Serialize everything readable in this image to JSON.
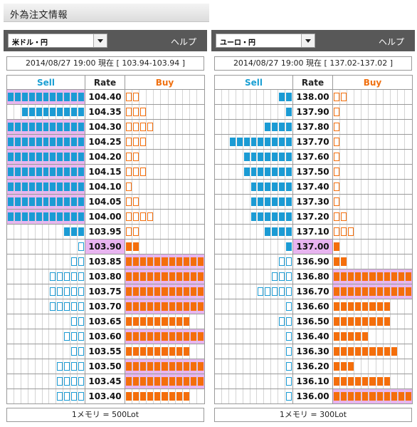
{
  "page": {
    "title": "外為注文情報"
  },
  "panels": [
    {
      "pair": "米ドル・円",
      "help": "ヘルプ",
      "timestamp": "2014/08/27  19:00 現在 [ 103.94-103.94 ]",
      "headers": {
        "sell": "Sell",
        "rate": "Rate",
        "buy": "Buy"
      },
      "footer": "1メモリ = 500Lot",
      "rows": [
        {
          "rate": "104.40",
          "sell": 11,
          "sell_type": "fill",
          "buy": 2,
          "buy_type": "empty",
          "hl": "sell"
        },
        {
          "rate": "104.35",
          "sell": 9,
          "sell_type": "fill",
          "buy": 3,
          "buy_type": "empty",
          "hl": ""
        },
        {
          "rate": "104.30",
          "sell": 11,
          "sell_type": "fill",
          "buy": 4,
          "buy_type": "empty",
          "hl": "sell"
        },
        {
          "rate": "104.25",
          "sell": 11,
          "sell_type": "fill",
          "buy": 3,
          "buy_type": "empty",
          "hl": "sell"
        },
        {
          "rate": "104.20",
          "sell": 11,
          "sell_type": "fill",
          "buy": 2,
          "buy_type": "empty",
          "hl": "sell"
        },
        {
          "rate": "104.15",
          "sell": 11,
          "sell_type": "fill",
          "buy": 3,
          "buy_type": "empty",
          "hl": "sell"
        },
        {
          "rate": "104.10",
          "sell": 11,
          "sell_type": "fill",
          "buy": 1,
          "buy_type": "empty",
          "hl": "sell"
        },
        {
          "rate": "104.05",
          "sell": 11,
          "sell_type": "fill",
          "buy": 2,
          "buy_type": "empty",
          "hl": "sell"
        },
        {
          "rate": "104.00",
          "sell": 11,
          "sell_type": "fill",
          "buy": 4,
          "buy_type": "empty",
          "hl": "sell"
        },
        {
          "rate": "103.95",
          "sell": 3,
          "sell_type": "fill",
          "buy": 2,
          "buy_type": "empty",
          "hl": ""
        },
        {
          "rate": "103.90",
          "sell": 1,
          "sell_type": "empty",
          "buy": 2,
          "buy_type": "fill",
          "hl": "",
          "current": true
        },
        {
          "rate": "103.85",
          "sell": 2,
          "sell_type": "empty",
          "buy": 11,
          "buy_type": "fill",
          "hl": "buy"
        },
        {
          "rate": "103.80",
          "sell": 5,
          "sell_type": "empty",
          "buy": 11,
          "buy_type": "fill",
          "hl": "buy"
        },
        {
          "rate": "103.75",
          "sell": 5,
          "sell_type": "empty",
          "buy": 11,
          "buy_type": "fill",
          "hl": "buy"
        },
        {
          "rate": "103.70",
          "sell": 5,
          "sell_type": "empty",
          "buy": 11,
          "buy_type": "fill",
          "hl": "buy"
        },
        {
          "rate": "103.65",
          "sell": 2,
          "sell_type": "empty",
          "buy": 9,
          "buy_type": "fill",
          "hl": ""
        },
        {
          "rate": "103.60",
          "sell": 3,
          "sell_type": "empty",
          "buy": 11,
          "buy_type": "fill",
          "hl": "buy"
        },
        {
          "rate": "103.55",
          "sell": 2,
          "sell_type": "empty",
          "buy": 9,
          "buy_type": "fill",
          "hl": ""
        },
        {
          "rate": "103.50",
          "sell": 4,
          "sell_type": "empty",
          "buy": 11,
          "buy_type": "fill",
          "hl": "buy"
        },
        {
          "rate": "103.45",
          "sell": 4,
          "sell_type": "empty",
          "buy": 11,
          "buy_type": "fill",
          "hl": "buy"
        },
        {
          "rate": "103.40",
          "sell": 4,
          "sell_type": "empty",
          "buy": 9,
          "buy_type": "fill",
          "hl": ""
        }
      ]
    },
    {
      "pair": "ユーロ・円",
      "help": "ヘルプ",
      "timestamp": "2014/08/27  19:00 現在 [ 137.02-137.02 ]",
      "headers": {
        "sell": "Sell",
        "rate": "Rate",
        "buy": "Buy"
      },
      "footer": "1メモリ = 300Lot",
      "rows": [
        {
          "rate": "138.00",
          "sell": 2,
          "sell_type": "fill",
          "buy": 2,
          "buy_type": "empty",
          "hl": ""
        },
        {
          "rate": "137.90",
          "sell": 1,
          "sell_type": "fill",
          "buy": 1,
          "buy_type": "empty",
          "hl": ""
        },
        {
          "rate": "137.80",
          "sell": 4,
          "sell_type": "fill",
          "buy": 1,
          "buy_type": "empty",
          "hl": ""
        },
        {
          "rate": "137.70",
          "sell": 9,
          "sell_type": "fill",
          "buy": 1,
          "buy_type": "empty",
          "hl": ""
        },
        {
          "rate": "137.60",
          "sell": 7,
          "sell_type": "fill",
          "buy": 1,
          "buy_type": "empty",
          "hl": ""
        },
        {
          "rate": "137.50",
          "sell": 7,
          "sell_type": "fill",
          "buy": 1,
          "buy_type": "empty",
          "hl": ""
        },
        {
          "rate": "137.40",
          "sell": 6,
          "sell_type": "fill",
          "buy": 1,
          "buy_type": "empty",
          "hl": ""
        },
        {
          "rate": "137.30",
          "sell": 6,
          "sell_type": "fill",
          "buy": 1,
          "buy_type": "empty",
          "hl": ""
        },
        {
          "rate": "137.20",
          "sell": 6,
          "sell_type": "fill",
          "buy": 2,
          "buy_type": "empty",
          "hl": ""
        },
        {
          "rate": "137.10",
          "sell": 4,
          "sell_type": "fill",
          "buy": 3,
          "buy_type": "empty",
          "hl": ""
        },
        {
          "rate": "137.00",
          "sell": 1,
          "sell_type": "fill",
          "buy": 1,
          "buy_type": "fill2",
          "hl": "",
          "current": true
        },
        {
          "rate": "136.90",
          "sell": 2,
          "sell_type": "empty",
          "buy": 2,
          "buy_type": "fill",
          "hl": ""
        },
        {
          "rate": "136.80",
          "sell": 3,
          "sell_type": "empty",
          "buy": 11,
          "buy_type": "fill",
          "hl": "buy"
        },
        {
          "rate": "136.70",
          "sell": 5,
          "sell_type": "empty",
          "buy": 11,
          "buy_type": "fill",
          "hl": "buy"
        },
        {
          "rate": "136.60",
          "sell": 1,
          "sell_type": "empty",
          "buy": 8,
          "buy_type": "fill",
          "hl": ""
        },
        {
          "rate": "136.50",
          "sell": 2,
          "sell_type": "empty",
          "buy": 8,
          "buy_type": "fill",
          "hl": ""
        },
        {
          "rate": "136.40",
          "sell": 1,
          "sell_type": "empty",
          "buy": 5,
          "buy_type": "fill",
          "hl": ""
        },
        {
          "rate": "136.30",
          "sell": 1,
          "sell_type": "empty",
          "buy": 9,
          "buy_type": "fill",
          "hl": ""
        },
        {
          "rate": "136.20",
          "sell": 1,
          "sell_type": "empty",
          "buy": 3,
          "buy_type": "fill",
          "hl": ""
        },
        {
          "rate": "136.10",
          "sell": 1,
          "sell_type": "empty",
          "buy": 8,
          "buy_type": "fill",
          "hl": ""
        },
        {
          "rate": "136.00",
          "sell": 1,
          "sell_type": "empty",
          "buy": 11,
          "buy_type": "fill",
          "hl": "buy"
        }
      ]
    }
  ]
}
